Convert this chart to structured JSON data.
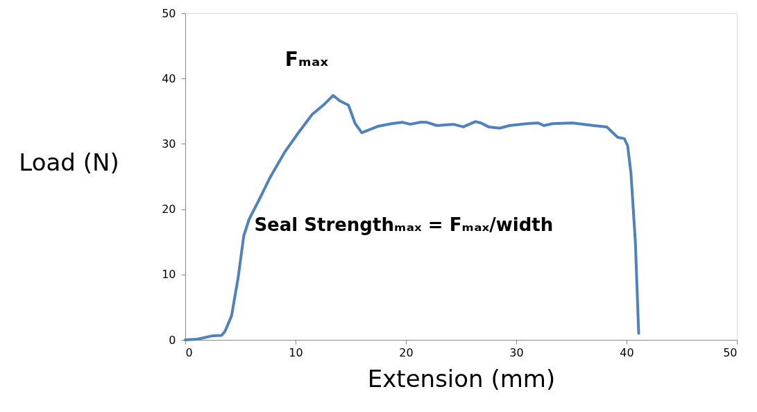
{
  "chart_data": {
    "type": "line",
    "xlabel": "Extension (mm)",
    "ylabel": "Load (N)",
    "xlim": [
      0,
      50
    ],
    "ylim": [
      0,
      50
    ],
    "xticks": [
      0,
      10,
      20,
      30,
      40,
      50
    ],
    "yticks": [
      0,
      10,
      20,
      30,
      40,
      50
    ],
    "grid": false,
    "marker": "none",
    "line_style": "solid",
    "annotations": [
      "Fₘₐₓ",
      "Seal Strengthₘₐₓ = Fₘₐₓ/width"
    ],
    "series": [
      {
        "color": "#4f81bd",
        "x": [
          0,
          1.1,
          2.4,
          3.3,
          3.6,
          4.2,
          4.8,
          5.3,
          5.8,
          6.8,
          7.7,
          9.0,
          10.3,
          11.5,
          12.5,
          13.4,
          14.0,
          14.8,
          15.4,
          16.0,
          17.5,
          18.7,
          19.7,
          20.4,
          21.3,
          21.9,
          22.8,
          24.3,
          25.2,
          26.3,
          26.8,
          27.5,
          28.5,
          29.4,
          31.0,
          32.0,
          32.5,
          33.3,
          35.1,
          37.0,
          38.2,
          38.7,
          39.2,
          39.8,
          40.1,
          40.4,
          40.8,
          41.1
        ],
        "values": [
          0,
          0.1,
          0.6,
          0.7,
          1.3,
          3.7,
          9.6,
          15.9,
          18.5,
          21.8,
          24.9,
          28.7,
          31.8,
          34.5,
          35.9,
          37.4,
          36.6,
          35.9,
          33.1,
          31.7,
          32.7,
          33.1,
          33.3,
          33.0,
          33.3,
          33.3,
          32.8,
          33.0,
          32.6,
          33.4,
          33.2,
          32.6,
          32.4,
          32.8,
          33.1,
          33.2,
          32.8,
          33.1,
          33.2,
          32.8,
          32.6,
          31.8,
          31.0,
          30.8,
          29.7,
          25.5,
          14.9,
          1.0
        ]
      }
    ]
  }
}
